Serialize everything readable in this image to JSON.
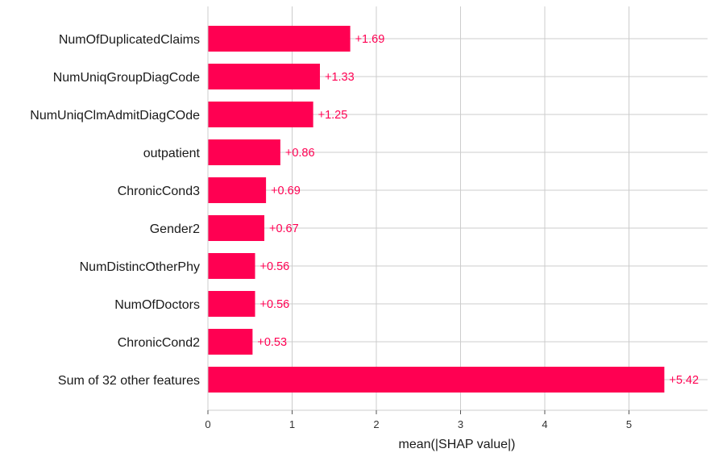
{
  "chart_data": {
    "type": "bar",
    "orientation": "horizontal",
    "categories": [
      "NumOfDuplicatedClaims",
      "NumUniqGroupDiagCode",
      "NumUniqClmAdmitDiagCOde",
      "outpatient",
      "ChronicCond3",
      "Gender2",
      "NumDistincOtherPhy",
      "NumOfDoctors",
      "ChronicCond2",
      "Sum of 32 other features"
    ],
    "values": [
      1.69,
      1.33,
      1.25,
      0.86,
      0.69,
      0.67,
      0.56,
      0.56,
      0.53,
      5.42
    ],
    "value_labels": [
      "+1.69",
      "+1.33",
      "+1.25",
      "+0.86",
      "+0.69",
      "+0.67",
      "+0.56",
      "+0.56",
      "+0.53",
      "+5.42"
    ],
    "xlabel": "mean(|SHAP value|)",
    "xticks": [
      0,
      1,
      2,
      3,
      4,
      5
    ],
    "xlim": [
      0,
      5.95
    ],
    "grid": true,
    "colors": {
      "bar": "#ff0052",
      "grid": "#cccccc",
      "axis": "#cccccc"
    }
  }
}
